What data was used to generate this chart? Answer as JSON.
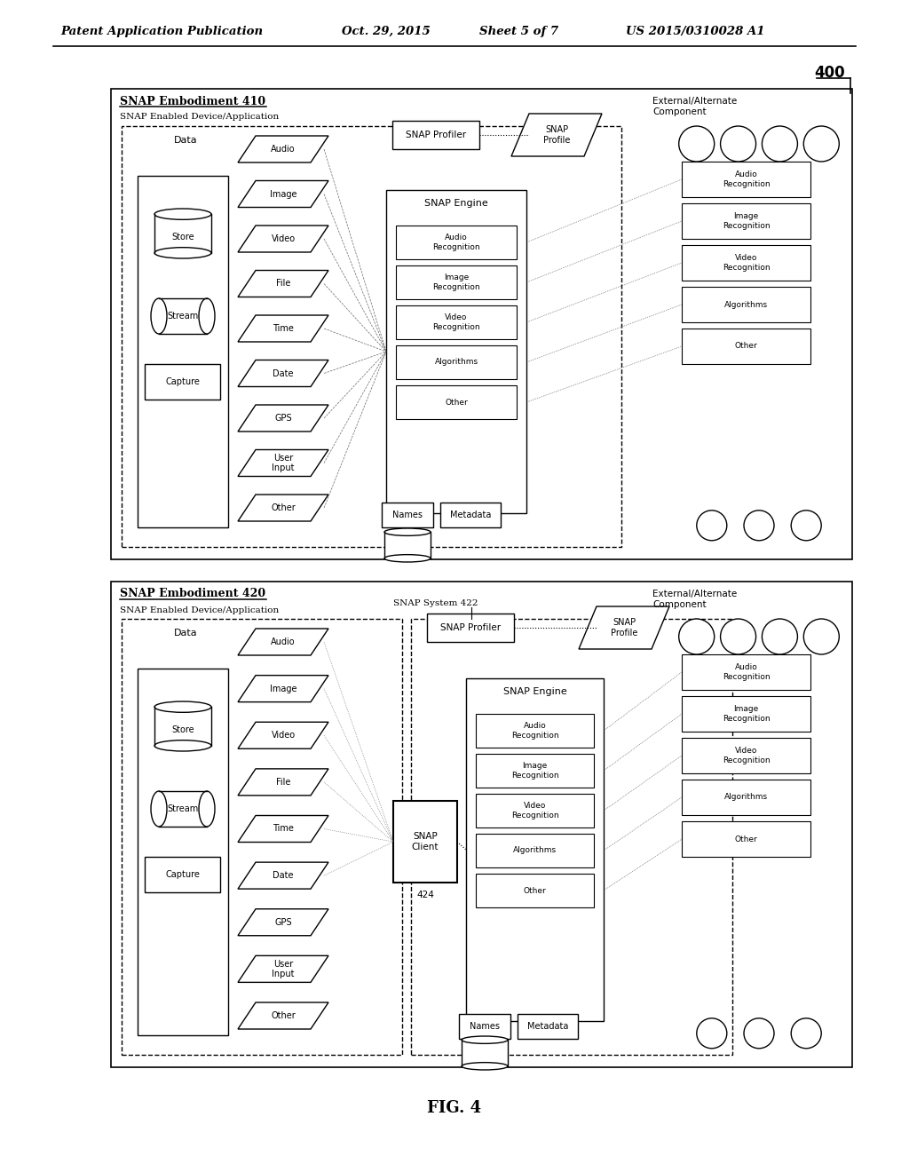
{
  "bg_color": "#ffffff",
  "header_text": "Patent Application Publication",
  "header_date": "Oct. 29, 2015",
  "header_sheet": "Sheet 5 of 7",
  "header_patent": "US 2015/0310028 A1",
  "fig_label": "FIG. 4",
  "ref_number": "400",
  "diagram1_title": "SNAP Embodiment 410",
  "diagram1_subtitle": "SNAP Enabled Device/Application",
  "diagram2_title": "SNAP Embodiment 420",
  "diagram2_subtitle": "SNAP Enabled Device/Application",
  "snap_system_label": "SNAP System 422",
  "external_label": "External/Alternate\nComponent",
  "data_label": "Data",
  "snap_engine_label": "SNAP Engine",
  "snap_profiler_label": "SNAP Profiler",
  "snap_profile_label": "SNAP\nProfile",
  "snap_client_label": "SNAP\nClient",
  "snap_client_num": "424",
  "names_label": "Names",
  "metadata_label": "Metadata",
  "store_label": "Store",
  "stream_label": "Stream",
  "capture_label": "Capture",
  "inputs": [
    "Audio",
    "Image",
    "Video",
    "File",
    "Time",
    "Date",
    "GPS",
    "User\nInput",
    "Other"
  ],
  "engine_items": [
    "Audio\nRecognition",
    "Image\nRecognition",
    "Video\nRecognition",
    "Algorithms",
    "Other"
  ],
  "ext_items": [
    "Audio\nRecognition",
    "Image\nRecognition",
    "Video\nRecognition",
    "Algorithms",
    "Other"
  ]
}
